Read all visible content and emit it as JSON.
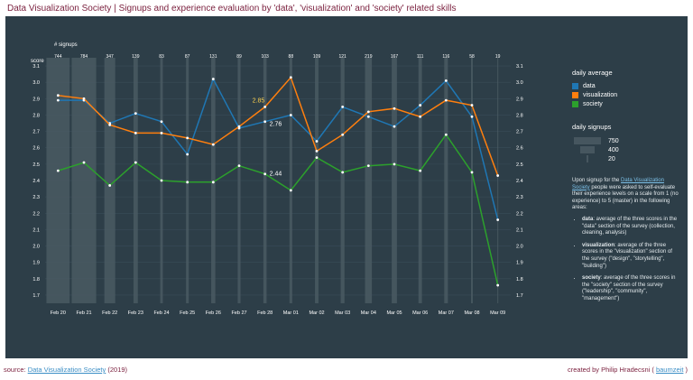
{
  "header": {
    "title": "Data Visualization Society | Signups and experience evaluation by 'data', 'visualization' and 'society' related skills"
  },
  "chart_data": {
    "type": "line",
    "y_axis_label": "score",
    "signups_label": "# signups",
    "categories": [
      "Feb 20",
      "Feb 21",
      "Feb 22",
      "Feb 23",
      "Feb 24",
      "Feb 25",
      "Feb 26",
      "Feb 27",
      "Feb 28",
      "Mar 01",
      "Mar 02",
      "Mar 03",
      "Mar 04",
      "Mar 05",
      "Mar 06",
      "Mar 07",
      "Mar 08",
      "Mar 09"
    ],
    "signups": [
      744,
      784,
      347,
      139,
      83,
      87,
      131,
      89,
      103,
      88,
      109,
      121,
      219,
      167,
      111,
      116,
      58,
      19
    ],
    "ylim": [
      1.65,
      3.15
    ],
    "yticks": [
      "1.7",
      "1.8",
      "1.9",
      "2.0",
      "2.1",
      "2.2",
      "2.3",
      "2.4",
      "2.5",
      "2.6",
      "2.7",
      "2.8",
      "2.9",
      "3.0",
      "3.1"
    ],
    "series": [
      {
        "name": "data",
        "color": "#1f77b4",
        "values": [
          2.89,
          2.89,
          2.75,
          2.81,
          2.76,
          2.56,
          3.02,
          2.72,
          2.76,
          2.8,
          2.64,
          2.85,
          2.79,
          2.73,
          2.86,
          3.01,
          2.79,
          2.16
        ]
      },
      {
        "name": "visualization",
        "color": "#ff7f0e",
        "values": [
          2.92,
          2.9,
          2.74,
          2.69,
          2.69,
          2.66,
          2.62,
          2.73,
          2.85,
          3.03,
          2.58,
          2.68,
          2.82,
          2.84,
          2.79,
          2.89,
          2.86,
          2.43
        ]
      },
      {
        "name": "society",
        "color": "#2ca02c",
        "values": [
          2.46,
          2.51,
          2.37,
          2.51,
          2.4,
          2.39,
          2.39,
          2.49,
          2.44,
          2.34,
          2.54,
          2.45,
          2.49,
          2.5,
          2.46,
          2.68,
          2.45,
          1.76
        ]
      }
    ],
    "annotations": [
      {
        "series": "visualization",
        "category": "Feb 28",
        "text": "2.85"
      },
      {
        "series": "data",
        "category": "Feb 28",
        "text": "2.76"
      },
      {
        "series": "society",
        "category": "Feb 28",
        "text": "2.44"
      }
    ]
  },
  "legend": {
    "title": "daily average",
    "items": [
      {
        "name": "data",
        "color": "#1f77b4"
      },
      {
        "name": "visualization",
        "color": "#ff7f0e"
      },
      {
        "name": "society",
        "color": "#2ca02c"
      }
    ]
  },
  "signups_legend": {
    "title": "daily signups",
    "items": [
      {
        "value": 750,
        "label": "750"
      },
      {
        "value": 400,
        "label": "400"
      },
      {
        "value": 20,
        "label": "20"
      }
    ]
  },
  "description": {
    "intro_before": "Upon signup for the ",
    "intro_link": "Data Visualization Society",
    "intro_after": " people were asked to self-evaluate their experience levels on a scale from 1 (no experience) to 5 (master) in the following areas:",
    "bullets": [
      {
        "term": "data",
        "text": ": average of the three scores in the \"data\" section of the survey (collection, cleaning, analysis)"
      },
      {
        "term": "visualization",
        "text": ": average of the three scores in the \"visualization\" section of the survey (\"design\", \"storytelling\", \"building\")"
      },
      {
        "term": "society",
        "text": ": average of the three scores in the \"society\" section of the survey (\"leadership\", \"community\", \"management\")"
      }
    ]
  },
  "footer": {
    "source_prefix": "source: ",
    "source_link": "Data Visualization Society",
    "source_suffix": " (2019)",
    "credit_prefix": "created by Philip Hradecsni ( ",
    "credit_link": "baumzeit",
    "credit_suffix": " )"
  }
}
